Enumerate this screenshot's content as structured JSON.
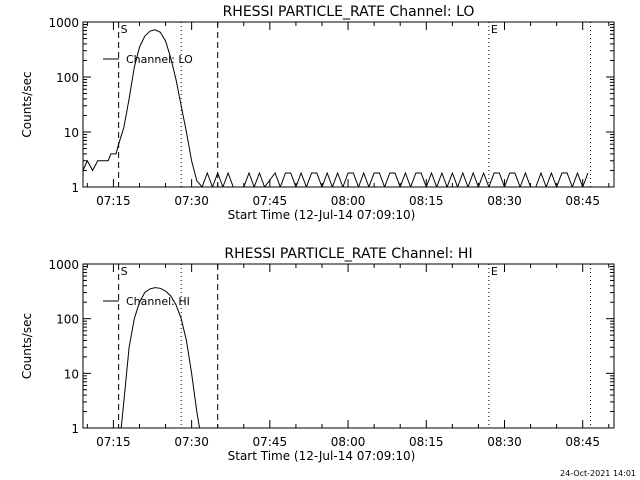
{
  "chart_data": [
    {
      "type": "line",
      "title": "RHESSI PARTICLE_RATE Channel: LO",
      "xlabel": "Start Time (12-Jul-14 07:09:10)",
      "ylabel": "Counts/sec",
      "yscale": "log",
      "ylim": [
        1,
        1000
      ],
      "xlim": [
        "07:09:10",
        "08:51:00"
      ],
      "x_ticks": [
        "07:15",
        "07:30",
        "07:45",
        "08:00",
        "08:15",
        "08:30",
        "08:45"
      ],
      "y_ticks": [
        "1",
        "10",
        "100",
        "1000"
      ],
      "legend": {
        "position": "top-left",
        "entries": [
          "Channel: LO"
        ]
      },
      "markers": [
        {
          "label": "S",
          "time": "07:16:00",
          "style": "dashed"
        },
        {
          "time": "07:28:00",
          "style": "dotted"
        },
        {
          "time": "07:35:00",
          "style": "dashed"
        },
        {
          "label": "E",
          "time": "08:27:00",
          "style": "dotted"
        },
        {
          "time": "08:46:30",
          "style": "dotted"
        }
      ],
      "series": [
        {
          "name": "Channel: LO",
          "points": [
            [
              "07:09:10",
              2
            ],
            [
              "07:10:00",
              3
            ],
            [
              "07:11:00",
              2
            ],
            [
              "07:12:00",
              3
            ],
            [
              "07:13:00",
              3
            ],
            [
              "07:14:00",
              3
            ],
            [
              "07:14:30",
              4
            ],
            [
              "07:15:30",
              4
            ],
            [
              "07:16:00",
              6
            ],
            [
              "07:17:00",
              12
            ],
            [
              "07:18:00",
              40
            ],
            [
              "07:19:00",
              150
            ],
            [
              "07:20:00",
              350
            ],
            [
              "07:21:00",
              550
            ],
            [
              "07:22:00",
              680
            ],
            [
              "07:23:00",
              720
            ],
            [
              "07:24:00",
              650
            ],
            [
              "07:25:00",
              450
            ],
            [
              "07:26:00",
              220
            ],
            [
              "07:27:00",
              90
            ],
            [
              "07:28:00",
              30
            ],
            [
              "07:29:00",
              10
            ],
            [
              "07:30:00",
              3
            ],
            [
              "07:31:00",
              1.3
            ],
            [
              "07:32:00",
              1
            ],
            [
              "07:33:00",
              1.8
            ],
            [
              "07:34:00",
              1
            ],
            [
              "07:35:00",
              1.8
            ],
            [
              "07:36:00",
              1
            ],
            [
              "07:37:00",
              1.8
            ],
            [
              "07:38:00",
              1
            ],
            [
              "07:40:00",
              1
            ],
            [
              "07:41:00",
              1.8
            ],
            [
              "07:42:00",
              1
            ],
            [
              "07:43:00",
              1.8
            ],
            [
              "07:44:00",
              1
            ],
            [
              "07:46:00",
              1.8
            ],
            [
              "07:47:00",
              1
            ],
            [
              "07:48:00",
              1.8
            ],
            [
              "07:49:00",
              1.8
            ],
            [
              "07:50:00",
              1
            ],
            [
              "07:51:00",
              1.8
            ],
            [
              "07:52:00",
              1
            ],
            [
              "07:53:00",
              1.8
            ],
            [
              "07:54:00",
              1.8
            ],
            [
              "07:55:00",
              1
            ],
            [
              "07:56:00",
              1.8
            ],
            [
              "07:57:00",
              1
            ],
            [
              "07:58:00",
              1.8
            ],
            [
              "07:59:00",
              1
            ],
            [
              "08:00:00",
              1.8
            ],
            [
              "08:01:00",
              1.8
            ],
            [
              "08:02:00",
              1
            ],
            [
              "08:03:00",
              1.8
            ],
            [
              "08:04:00",
              1
            ],
            [
              "08:05:00",
              1.8
            ],
            [
              "08:06:00",
              1.8
            ],
            [
              "08:07:00",
              1
            ],
            [
              "08:08:00",
              1.8
            ],
            [
              "08:09:00",
              1.8
            ],
            [
              "08:10:00",
              1
            ],
            [
              "08:11:00",
              1.8
            ],
            [
              "08:12:00",
              1
            ],
            [
              "08:13:00",
              1.8
            ],
            [
              "08:14:00",
              1.8
            ],
            [
              "08:15:00",
              1
            ],
            [
              "08:16:00",
              1.8
            ],
            [
              "08:17:00",
              1
            ],
            [
              "08:18:00",
              1.8
            ],
            [
              "08:19:00",
              1
            ],
            [
              "08:20:00",
              1.8
            ],
            [
              "08:21:00",
              1
            ],
            [
              "08:22:00",
              1.8
            ],
            [
              "08:23:00",
              1
            ],
            [
              "08:24:00",
              1.8
            ],
            [
              "08:25:00",
              1
            ],
            [
              "08:26:00",
              1.8
            ],
            [
              "08:27:00",
              1
            ],
            [
              "08:28:00",
              1.8
            ],
            [
              "08:29:00",
              1.8
            ],
            [
              "08:30:00",
              1
            ],
            [
              "08:31:00",
              1.8
            ],
            [
              "08:32:00",
              1.8
            ],
            [
              "08:33:00",
              1
            ],
            [
              "08:34:00",
              1.8
            ],
            [
              "08:35:00",
              1
            ],
            [
              "08:36:00",
              1
            ],
            [
              "08:37:00",
              1.8
            ],
            [
              "08:38:00",
              1
            ],
            [
              "08:39:00",
              1.8
            ],
            [
              "08:40:00",
              1
            ],
            [
              "08:41:00",
              1.8
            ],
            [
              "08:42:00",
              1.8
            ],
            [
              "08:43:00",
              1
            ],
            [
              "08:44:00",
              1.8
            ],
            [
              "08:45:00",
              1
            ],
            [
              "08:46:00",
              1.8
            ]
          ]
        }
      ]
    },
    {
      "type": "line",
      "title": "RHESSI PARTICLE_RATE Channel: HI",
      "xlabel": "Start Time (12-Jul-14 07:09:10)",
      "ylabel": "Counts/sec",
      "yscale": "log",
      "ylim": [
        1,
        1000
      ],
      "xlim": [
        "07:09:10",
        "08:51:00"
      ],
      "x_ticks": [
        "07:15",
        "07:30",
        "07:45",
        "08:00",
        "08:15",
        "08:30",
        "08:45"
      ],
      "y_ticks": [
        "1",
        "10",
        "100",
        "1000"
      ],
      "legend": {
        "position": "top-left",
        "entries": [
          "Channel: HI"
        ]
      },
      "markers": [
        {
          "label": "S",
          "time": "07:16:00",
          "style": "dashed"
        },
        {
          "time": "07:28:00",
          "style": "dotted"
        },
        {
          "time": "07:35:00",
          "style": "dashed"
        },
        {
          "label": "E",
          "time": "08:27:00",
          "style": "dotted"
        },
        {
          "time": "08:46:30",
          "style": "dotted"
        }
      ],
      "series": [
        {
          "name": "Channel: HI",
          "points": [
            [
              "07:16:30",
              1
            ],
            [
              "07:17:00",
              3
            ],
            [
              "07:18:00",
              30
            ],
            [
              "07:19:00",
              100
            ],
            [
              "07:20:00",
              200
            ],
            [
              "07:21:00",
              300
            ],
            [
              "07:22:00",
              350
            ],
            [
              "07:23:00",
              370
            ],
            [
              "07:24:00",
              360
            ],
            [
              "07:25:00",
              320
            ],
            [
              "07:26:00",
              260
            ],
            [
              "07:27:00",
              180
            ],
            [
              "07:28:00",
              100
            ],
            [
              "07:29:00",
              40
            ],
            [
              "07:30:00",
              10
            ],
            [
              "07:31:00",
              2
            ],
            [
              "07:31:30",
              1
            ]
          ]
        }
      ]
    }
  ],
  "footer": {
    "timestamp": "24-Oct-2021 14:01"
  }
}
